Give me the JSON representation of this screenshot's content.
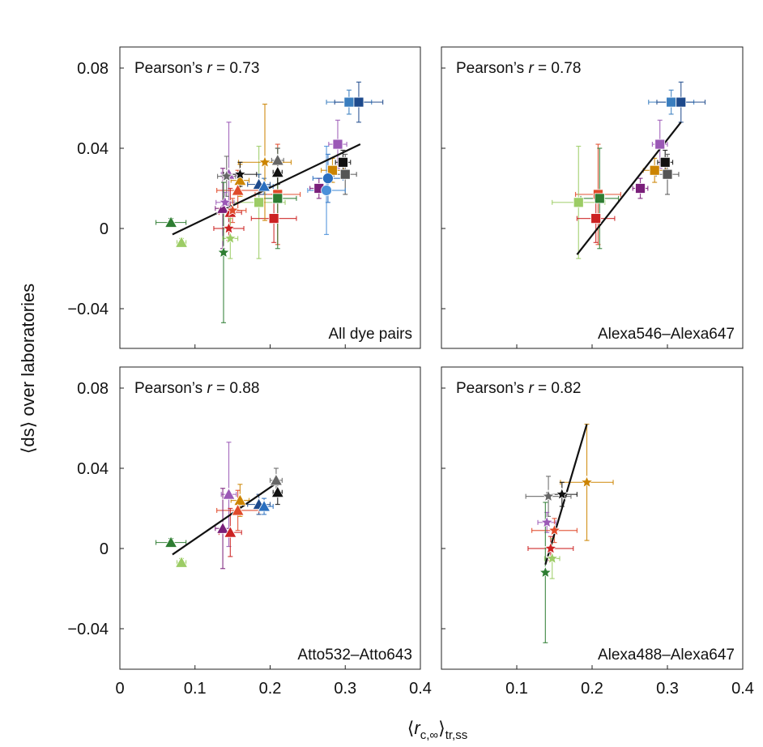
{
  "chart_data": {
    "type": "scatter",
    "ylabel": "⟨ds⟩ over laboratories",
    "xlabel": {
      "open": "⟨",
      "var": "r",
      "sub": "c,∞",
      "close": "⟩",
      "sub2": "tr,ss"
    },
    "xlim": [
      0,
      0.4
    ],
    "ylim": [
      -0.06,
      0.09
    ],
    "xticks": [
      0,
      0.1,
      0.2,
      0.3,
      0.4
    ],
    "xtick_labels": [
      "0",
      "0.1",
      "0.2",
      "0.3",
      "0.4"
    ],
    "yticks": [
      -0.04,
      0,
      0.04,
      0.08
    ],
    "ytick_labels": [
      "−0.04",
      "0",
      "0.04",
      "0.08"
    ],
    "pearson_prefix": "Pearson’s ",
    "pearson_var": "r",
    "panels": [
      {
        "id": "all",
        "label": "All dye pairs",
        "pearson_value": " = 0.73",
        "fit_line": [
          [
            0.07,
            -0.003
          ],
          [
            0.32,
            0.042
          ]
        ],
        "points": [
          {
            "x": 0.305,
            "y": 0.063,
            "xerr": 0.03,
            "yerr": 0.006,
            "marker": "square",
            "color": "#3a7ebf"
          },
          {
            "x": 0.318,
            "y": 0.063,
            "xerr": 0.032,
            "yerr": 0.01,
            "marker": "square",
            "color": "#1e4a8c"
          },
          {
            "x": 0.29,
            "y": 0.042,
            "xerr": 0.012,
            "yerr": 0.012,
            "marker": "square",
            "color": "#9b59b6"
          },
          {
            "x": 0.297,
            "y": 0.033,
            "xerr": 0.01,
            "yerr": 0.006,
            "marker": "square",
            "color": "#111111"
          },
          {
            "x": 0.283,
            "y": 0.029,
            "xerr": 0.015,
            "yerr": 0.006,
            "marker": "square",
            "color": "#cc8400"
          },
          {
            "x": 0.3,
            "y": 0.027,
            "xerr": 0.015,
            "yerr": 0.01,
            "marker": "square",
            "color": "#555555"
          },
          {
            "x": 0.265,
            "y": 0.02,
            "xerr": 0.012,
            "yerr": 0.005,
            "marker": "square",
            "color": "#7a1f7a"
          },
          {
            "x": 0.21,
            "y": 0.017,
            "xerr": 0.03,
            "yerr": 0.025,
            "marker": "square",
            "color": "#e04a2a"
          },
          {
            "x": 0.21,
            "y": 0.015,
            "xerr": 0.025,
            "yerr": 0.025,
            "marker": "square",
            "color": "#2e7d32"
          },
          {
            "x": 0.185,
            "y": 0.013,
            "xerr": 0.035,
            "yerr": 0.028,
            "marker": "square",
            "color": "#9ccc65"
          },
          {
            "x": 0.205,
            "y": 0.005,
            "xerr": 0.03,
            "yerr": 0.012,
            "marker": "square",
            "color": "#cc2222"
          },
          {
            "x": 0.277,
            "y": 0.025,
            "xerr": 0.02,
            "yerr": 0.012,
            "marker": "circle",
            "color": "#2a6fbf"
          },
          {
            "x": 0.275,
            "y": 0.019,
            "xerr": 0.025,
            "yerr": 0.022,
            "marker": "circle",
            "color": "#4a90d9"
          },
          {
            "x": 0.21,
            "y": 0.034,
            "xerr": 0.008,
            "yerr": 0.006,
            "marker": "triangle",
            "color": "#666666"
          },
          {
            "x": 0.21,
            "y": 0.028,
            "xerr": 0.006,
            "yerr": 0.006,
            "marker": "triangle",
            "color": "#111111"
          },
          {
            "x": 0.145,
            "y": 0.027,
            "xerr": 0.01,
            "yerr": 0.026,
            "marker": "triangle",
            "color": "#9b59b6"
          },
          {
            "x": 0.16,
            "y": 0.024,
            "xerr": 0.012,
            "yerr": 0.008,
            "marker": "triangle",
            "color": "#cc8400"
          },
          {
            "x": 0.185,
            "y": 0.022,
            "xerr": 0.015,
            "yerr": 0.005,
            "marker": "triangle",
            "color": "#1e4a8c"
          },
          {
            "x": 0.192,
            "y": 0.021,
            "xerr": 0.012,
            "yerr": 0.004,
            "marker": "triangle",
            "color": "#2a6fbf"
          },
          {
            "x": 0.157,
            "y": 0.019,
            "xerr": 0.028,
            "yerr": 0.01,
            "marker": "triangle",
            "color": "#e04a2a"
          },
          {
            "x": 0.137,
            "y": 0.01,
            "xerr": 0.01,
            "yerr": 0.02,
            "marker": "triangle",
            "color": "#7a1f7a"
          },
          {
            "x": 0.147,
            "y": 0.008,
            "xerr": 0.015,
            "yerr": 0.012,
            "marker": "triangle",
            "color": "#cc2222"
          },
          {
            "x": 0.068,
            "y": 0.003,
            "xerr": 0.02,
            "yerr": 0.002,
            "marker": "triangle",
            "color": "#2e7d32"
          },
          {
            "x": 0.082,
            "y": -0.007,
            "xerr": 0.006,
            "yerr": 0.002,
            "marker": "triangle",
            "color": "#9ccc65"
          },
          {
            "x": 0.193,
            "y": 0.033,
            "xerr": 0.035,
            "yerr": 0.029,
            "marker": "star",
            "color": "#cc8400"
          },
          {
            "x": 0.16,
            "y": 0.027,
            "xerr": 0.022,
            "yerr": 0.006,
            "marker": "star",
            "color": "#111111"
          },
          {
            "x": 0.142,
            "y": 0.026,
            "xerr": 0.012,
            "yerr": 0.01,
            "marker": "star",
            "color": "#666666"
          },
          {
            "x": 0.14,
            "y": 0.013,
            "xerr": 0.012,
            "yerr": 0.005,
            "marker": "star",
            "color": "#9b59b6"
          },
          {
            "x": 0.15,
            "y": 0.009,
            "xerr": 0.018,
            "yerr": 0.006,
            "marker": "star",
            "color": "#e04a2a"
          },
          {
            "x": 0.145,
            "y": 0.0,
            "xerr": 0.02,
            "yerr": 0.006,
            "marker": "star",
            "color": "#cc2222"
          },
          {
            "x": 0.147,
            "y": -0.005,
            "xerr": 0.01,
            "yerr": 0.01,
            "marker": "star",
            "color": "#9ccc65"
          },
          {
            "x": 0.138,
            "y": -0.012,
            "xerr": 0.002,
            "yerr": 0.035,
            "marker": "star",
            "color": "#2e7d32"
          }
        ]
      },
      {
        "id": "alexa546",
        "label": "Alexa546–Alexa647",
        "pearson_value": " = 0.78",
        "fit_line": [
          [
            0.18,
            -0.013
          ],
          [
            0.318,
            0.053
          ]
        ],
        "points": [
          {
            "x": 0.305,
            "y": 0.063,
            "xerr": 0.03,
            "yerr": 0.006,
            "marker": "square",
            "color": "#3a7ebf"
          },
          {
            "x": 0.318,
            "y": 0.063,
            "xerr": 0.032,
            "yerr": 0.01,
            "marker": "square",
            "color": "#1e4a8c"
          },
          {
            "x": 0.29,
            "y": 0.042,
            "xerr": 0.01,
            "yerr": 0.012,
            "marker": "square",
            "color": "#9b59b6"
          },
          {
            "x": 0.297,
            "y": 0.033,
            "xerr": 0.01,
            "yerr": 0.006,
            "marker": "square",
            "color": "#111111"
          },
          {
            "x": 0.283,
            "y": 0.029,
            "xerr": 0.015,
            "yerr": 0.006,
            "marker": "square",
            "color": "#cc8400"
          },
          {
            "x": 0.3,
            "y": 0.027,
            "xerr": 0.015,
            "yerr": 0.01,
            "marker": "square",
            "color": "#555555"
          },
          {
            "x": 0.264,
            "y": 0.02,
            "xerr": 0.01,
            "yerr": 0.005,
            "marker": "square",
            "color": "#7a1f7a"
          },
          {
            "x": 0.208,
            "y": 0.017,
            "xerr": 0.03,
            "yerr": 0.025,
            "marker": "square",
            "color": "#e04a2a"
          },
          {
            "x": 0.21,
            "y": 0.015,
            "xerr": 0.025,
            "yerr": 0.025,
            "marker": "square",
            "color": "#2e7d32"
          },
          {
            "x": 0.182,
            "y": 0.013,
            "xerr": 0.035,
            "yerr": 0.028,
            "marker": "square",
            "color": "#9ccc65"
          },
          {
            "x": 0.205,
            "y": 0.005,
            "xerr": 0.025,
            "yerr": 0.012,
            "marker": "square",
            "color": "#cc2222"
          }
        ]
      },
      {
        "id": "atto532",
        "label": "Atto532–Atto643",
        "pearson_value": " = 0.88",
        "fit_line": [
          [
            0.07,
            -0.003
          ],
          [
            0.21,
            0.033
          ]
        ],
        "points": [
          {
            "x": 0.208,
            "y": 0.034,
            "xerr": 0.008,
            "yerr": 0.006,
            "marker": "triangle",
            "color": "#666666"
          },
          {
            "x": 0.21,
            "y": 0.028,
            "xerr": 0.006,
            "yerr": 0.006,
            "marker": "triangle",
            "color": "#111111"
          },
          {
            "x": 0.145,
            "y": 0.027,
            "xerr": 0.01,
            "yerr": 0.026,
            "marker": "triangle",
            "color": "#9b59b6"
          },
          {
            "x": 0.16,
            "y": 0.024,
            "xerr": 0.012,
            "yerr": 0.008,
            "marker": "triangle",
            "color": "#cc8400"
          },
          {
            "x": 0.185,
            "y": 0.022,
            "xerr": 0.015,
            "yerr": 0.005,
            "marker": "triangle",
            "color": "#1e4a8c"
          },
          {
            "x": 0.192,
            "y": 0.021,
            "xerr": 0.012,
            "yerr": 0.004,
            "marker": "triangle",
            "color": "#2a6fbf"
          },
          {
            "x": 0.157,
            "y": 0.019,
            "xerr": 0.028,
            "yerr": 0.01,
            "marker": "triangle",
            "color": "#e04a2a"
          },
          {
            "x": 0.137,
            "y": 0.01,
            "xerr": 0.01,
            "yerr": 0.02,
            "marker": "triangle",
            "color": "#7a1f7a"
          },
          {
            "x": 0.147,
            "y": 0.008,
            "xerr": 0.015,
            "yerr": 0.012,
            "marker": "triangle",
            "color": "#cc2222"
          },
          {
            "x": 0.068,
            "y": 0.003,
            "xerr": 0.02,
            "yerr": 0.002,
            "marker": "triangle",
            "color": "#2e7d32"
          },
          {
            "x": 0.082,
            "y": -0.007,
            "xerr": 0.006,
            "yerr": 0.002,
            "marker": "triangle",
            "color": "#9ccc65"
          }
        ]
      },
      {
        "id": "alexa488",
        "label": "Alexa488–Alexa647",
        "pearson_value": " = 0.82",
        "fit_line": [
          [
            0.138,
            -0.008
          ],
          [
            0.193,
            0.062
          ]
        ],
        "points": [
          {
            "x": 0.193,
            "y": 0.033,
            "xerr": 0.035,
            "yerr": 0.029,
            "marker": "star",
            "color": "#cc8400"
          },
          {
            "x": 0.16,
            "y": 0.027,
            "xerr": 0.02,
            "yerr": 0.006,
            "marker": "star",
            "color": "#111111"
          },
          {
            "x": 0.142,
            "y": 0.026,
            "xerr": 0.03,
            "yerr": 0.01,
            "marker": "star",
            "color": "#666666"
          },
          {
            "x": 0.14,
            "y": 0.013,
            "xerr": 0.012,
            "yerr": 0.005,
            "marker": "star",
            "color": "#9b59b6"
          },
          {
            "x": 0.15,
            "y": 0.009,
            "xerr": 0.03,
            "yerr": 0.006,
            "marker": "star",
            "color": "#e04a2a"
          },
          {
            "x": 0.145,
            "y": 0.0,
            "xerr": 0.03,
            "yerr": 0.006,
            "marker": "star",
            "color": "#cc2222"
          },
          {
            "x": 0.147,
            "y": -0.005,
            "xerr": 0.01,
            "yerr": 0.01,
            "marker": "star",
            "color": "#9ccc65"
          },
          {
            "x": 0.138,
            "y": -0.012,
            "xerr": 0.002,
            "yerr": 0.035,
            "marker": "star",
            "color": "#2e7d32"
          }
        ]
      }
    ]
  }
}
